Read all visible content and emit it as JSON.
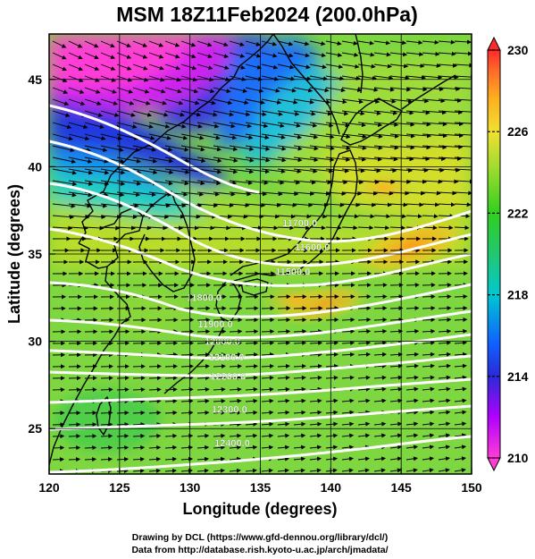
{
  "figure": {
    "title": "MSM 18Z11Feb2024 (200.0hPa)",
    "xlabel": "Longitude (degrees)",
    "ylabel": "Latitude  (degrees)",
    "credit_line1": "Drawing by DCL (https://www.gfd-dennou.org/library/dcl/)",
    "credit_line2": "Data from http://database.rish.kyoto-u.ac.jp/arch/jmadata/"
  },
  "chart_data": {
    "type": "heatmap",
    "title": "MSM 18Z11Feb2024 (200.0hPa)",
    "xlabel": "Longitude (degrees)",
    "ylabel": "Latitude  (degrees)",
    "xlim": [
      120,
      150
    ],
    "ylim": [
      22.4,
      47.6
    ],
    "x_ticks": [
      120,
      125,
      130,
      135,
      140,
      145,
      150
    ],
    "y_ticks": [
      25,
      30,
      35,
      40,
      45
    ],
    "grid": false,
    "colorbar": {
      "vmin": 210,
      "vmax": 230,
      "ticks": [
        210,
        214,
        218,
        222,
        226,
        230
      ],
      "colors": [
        "#ff3dd6",
        "#b200ff",
        "#2a2ad8",
        "#1060ff",
        "#00c8d0",
        "#22c870",
        "#30d020",
        "#a8dc30",
        "#ffb020",
        "#ff6a2a",
        "#ff2a2a"
      ]
    },
    "contour_labels": [
      {
        "text": "11800.0",
        "lon": 131.0,
        "lat": 32.3
      },
      {
        "text": "11900.0",
        "lon": 131.8,
        "lat": 30.8
      },
      {
        "text": "12000.0",
        "lon": 132.3,
        "lat": 29.8
      },
      {
        "text": "12100.0",
        "lon": 132.6,
        "lat": 28.9
      },
      {
        "text": "12200.0",
        "lon": 132.7,
        "lat": 27.8
      },
      {
        "text": "12300.0",
        "lon": 132.8,
        "lat": 25.9
      },
      {
        "text": "12400.0",
        "lon": 133.0,
        "lat": 24.0
      },
      {
        "text": "11700.0",
        "lon": 137.8,
        "lat": 36.6
      },
      {
        "text": "11600.0",
        "lon": 138.7,
        "lat": 35.2
      },
      {
        "text": "11500.0",
        "lon": 137.3,
        "lat": 33.8
      }
    ]
  },
  "colors": {
    "contour": "#ffffff",
    "arrows": "#000000",
    "coastline": "#000000"
  }
}
